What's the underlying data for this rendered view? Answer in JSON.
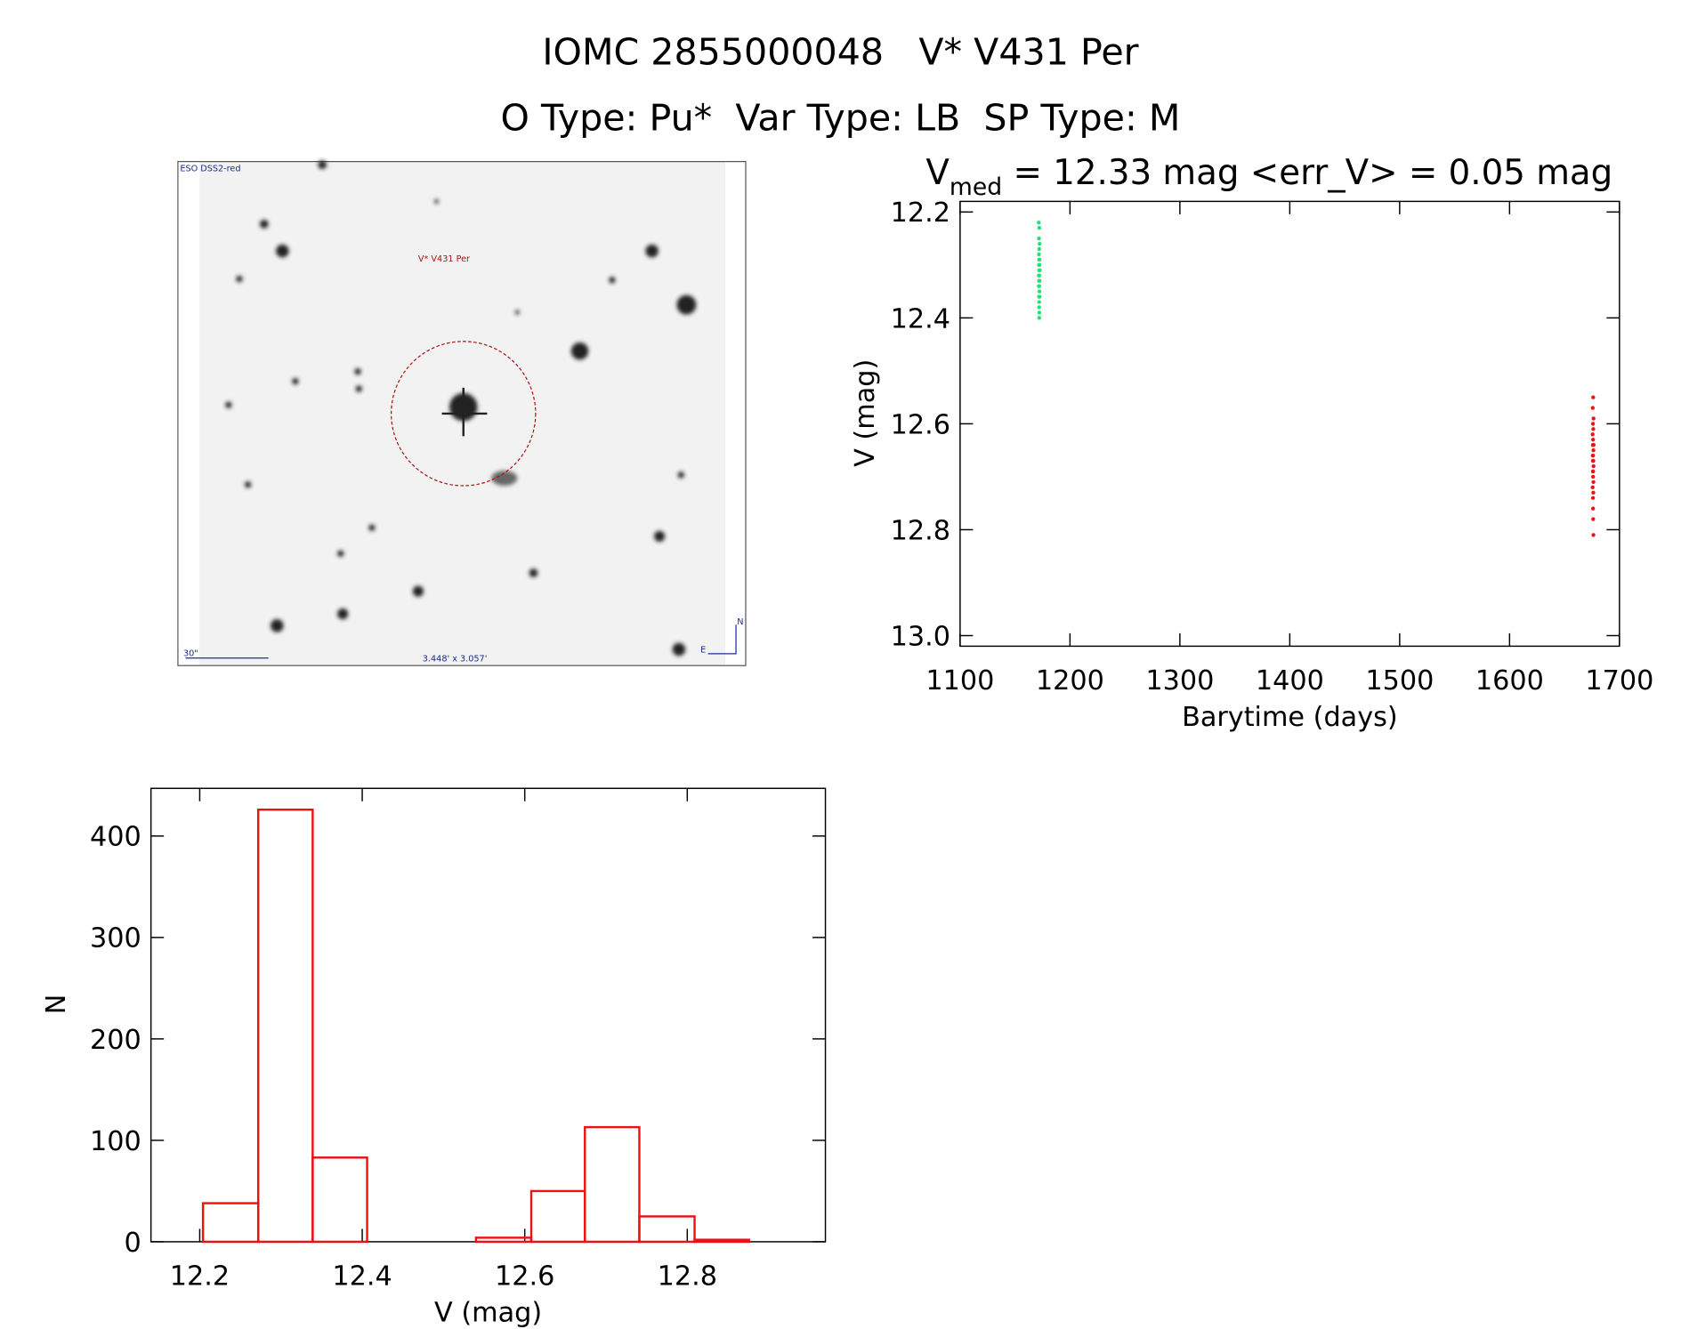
{
  "header": {
    "title": "IOMC 2855000048   V* V431 Per",
    "subtitle": "O Type: Pu*  Var Type: LB  SP Type: M"
  },
  "image": {
    "survey": "ESO DSS2-red",
    "object": "V* V431 Per",
    "scale": "30\"",
    "size": "3.448' x 3.057'",
    "north": "N",
    "east": "E"
  },
  "chart_data": [
    {
      "type": "scatter",
      "title": {
        "symbol": "V",
        "subscript": "med",
        "text": " = 12.33 mag <err_V> = 0.05 mag"
      },
      "x_label": "Barytime (days)",
      "y_label": "V (mag)",
      "xlim": [
        1100,
        1700
      ],
      "ylim": [
        13.02,
        12.18
      ],
      "xticks": [
        1100,
        1200,
        1300,
        1400,
        1500,
        1600,
        1700
      ],
      "yticks": [
        12.2,
        12.4,
        12.6,
        12.8,
        {
          "value": 13,
          "label": "13.0"
        }
      ],
      "series": [
        {
          "color": "#22e07a",
          "x": [
            1171.6,
            1172.1,
            1171.8,
            1172.4,
            1172.0,
            1171.7,
            1172.3,
            1171.9,
            1172.2,
            1171.8,
            1172.0,
            1172.5,
            1171.6,
            1172.1,
            1171.9,
            1172.3,
            1172.0,
            1171.7,
            1172.2,
            1171.8,
            1172.4,
            1172.0,
            1171.9,
            1172.1,
            1172.0
          ],
          "y": [
            12.22,
            12.23,
            12.25,
            12.26,
            12.27,
            12.28,
            12.29,
            12.29,
            12.3,
            12.3,
            12.31,
            12.31,
            12.32,
            12.32,
            12.33,
            12.33,
            12.34,
            12.34,
            12.35,
            12.36,
            12.36,
            12.37,
            12.38,
            12.39,
            12.4
          ]
        },
        {
          "color": "#ee1111",
          "x": [
            1676.1,
            1675.7,
            1676.4,
            1675.9,
            1676.2,
            1675.6,
            1676.0,
            1676.5,
            1675.8,
            1676.3,
            1676.0,
            1675.7,
            1676.2,
            1675.9,
            1676.4,
            1676.1,
            1675.8,
            1676.0,
            1676.3,
            1675.6,
            1676.2,
            1675.9,
            1676.0,
            1676.1,
            1676.3
          ],
          "y": [
            12.55,
            12.57,
            12.59,
            12.6,
            12.61,
            12.62,
            12.63,
            12.64,
            12.64,
            12.65,
            12.66,
            12.66,
            12.67,
            12.67,
            12.68,
            12.69,
            12.69,
            12.7,
            12.71,
            12.72,
            12.73,
            12.74,
            12.76,
            12.78,
            12.81
          ]
        }
      ]
    },
    {
      "type": "histogram",
      "color": "#ee1111",
      "x_label": "V (mag)",
      "y_label": "N",
      "bins": [
        12.204,
        12.272,
        12.339,
        12.406,
        12.474,
        12.54,
        12.608,
        12.674,
        12.741,
        12.809,
        12.876
      ],
      "counts": [
        38,
        426,
        83,
        0,
        0,
        4,
        50,
        113,
        25,
        2
      ],
      "xlim": [
        12.14,
        12.97
      ],
      "ylim": [
        0,
        447
      ],
      "xticks": [
        12.2,
        12.4,
        12.6,
        12.8
      ],
      "yticks": [
        0,
        100,
        200,
        300,
        400
      ]
    }
  ]
}
